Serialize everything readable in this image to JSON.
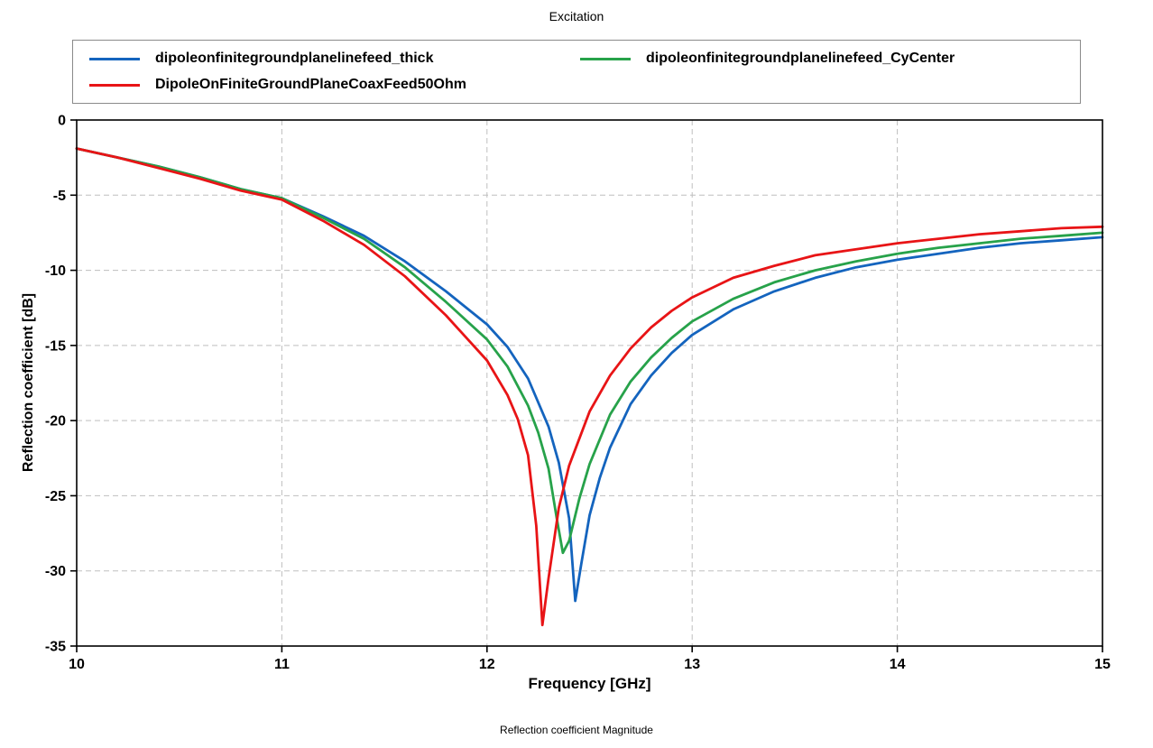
{
  "title": "Excitation",
  "caption": "Reflection coefficient Magnitude",
  "chart_data": {
    "type": "line",
    "title": "Excitation",
    "xlabel": "Frequency [GHz]",
    "ylabel": "Reflection coefficient [dB]",
    "xlim": [
      10,
      15
    ],
    "ylim": [
      -35,
      0
    ],
    "xticks": [
      10,
      11,
      12,
      13,
      14,
      15
    ],
    "yticks": [
      0,
      -5,
      -10,
      -15,
      -20,
      -25,
      -30,
      -35
    ],
    "grid": true,
    "grid_style": "dashed",
    "grid_color": "#bfbfbf",
    "legend_position": "top",
    "series": [
      {
        "name": "dipoleonfinitegroundplanelinefeed_thick",
        "color": "#1464be",
        "x": [
          10,
          10.2,
          10.4,
          10.6,
          10.8,
          11,
          11.2,
          11.4,
          11.6,
          11.8,
          12,
          12.1,
          12.2,
          12.3,
          12.35,
          12.4,
          12.43,
          12.46,
          12.5,
          12.55,
          12.6,
          12.7,
          12.8,
          12.9,
          13,
          13.2,
          13.4,
          13.6,
          13.8,
          14,
          14.2,
          14.4,
          14.6,
          14.8,
          15
        ],
        "y": [
          -1.9,
          -2.5,
          -3.1,
          -3.8,
          -4.6,
          -5.2,
          -6.4,
          -7.7,
          -9.4,
          -11.4,
          -13.6,
          -15.1,
          -17.2,
          -20.4,
          -22.8,
          -26.5,
          -32.0,
          -29.5,
          -26.3,
          -23.8,
          -21.8,
          -18.9,
          -17.0,
          -15.5,
          -14.3,
          -12.6,
          -11.4,
          -10.5,
          -9.8,
          -9.3,
          -8.9,
          -8.5,
          -8.2,
          -8.0,
          -7.8
        ]
      },
      {
        "name": "dipoleonfinitegroundplanelinefeed_CyCenter",
        "color": "#27a24a",
        "x": [
          10,
          10.2,
          10.4,
          10.6,
          10.8,
          11,
          11.2,
          11.4,
          11.6,
          11.8,
          12,
          12.1,
          12.2,
          12.25,
          12.3,
          12.34,
          12.37,
          12.4,
          12.45,
          12.5,
          12.6,
          12.7,
          12.8,
          12.9,
          13,
          13.2,
          13.4,
          13.6,
          13.8,
          14,
          14.2,
          14.4,
          14.6,
          14.8,
          15
        ],
        "y": [
          -1.9,
          -2.5,
          -3.1,
          -3.8,
          -4.6,
          -5.2,
          -6.5,
          -7.9,
          -9.8,
          -12.1,
          -14.6,
          -16.4,
          -19.0,
          -20.8,
          -23.2,
          -26.5,
          -28.8,
          -28.0,
          -25.2,
          -22.9,
          -19.6,
          -17.4,
          -15.8,
          -14.5,
          -13.4,
          -11.9,
          -10.8,
          -10.0,
          -9.4,
          -8.9,
          -8.5,
          -8.2,
          -7.9,
          -7.7,
          -7.5
        ]
      },
      {
        "name": "DipoleOnFiniteGroundPlaneCoaxFeed50Ohm",
        "color": "#e81416",
        "x": [
          10,
          10.2,
          10.4,
          10.6,
          10.8,
          11,
          11.2,
          11.4,
          11.6,
          11.8,
          12,
          12.1,
          12.15,
          12.2,
          12.24,
          12.27,
          12.3,
          12.35,
          12.4,
          12.5,
          12.6,
          12.7,
          12.8,
          12.9,
          13,
          13.2,
          13.4,
          13.6,
          13.8,
          14,
          14.2,
          14.4,
          14.6,
          14.8,
          15
        ],
        "y": [
          -1.9,
          -2.5,
          -3.2,
          -3.9,
          -4.7,
          -5.3,
          -6.7,
          -8.3,
          -10.4,
          -13.0,
          -16.0,
          -18.3,
          -19.9,
          -22.3,
          -27.0,
          -33.6,
          -30.5,
          -25.8,
          -23.0,
          -19.4,
          -17.0,
          -15.2,
          -13.8,
          -12.7,
          -11.8,
          -10.5,
          -9.7,
          -9.0,
          -8.6,
          -8.2,
          -7.9,
          -7.6,
          -7.4,
          -7.2,
          -7.1
        ]
      }
    ]
  }
}
